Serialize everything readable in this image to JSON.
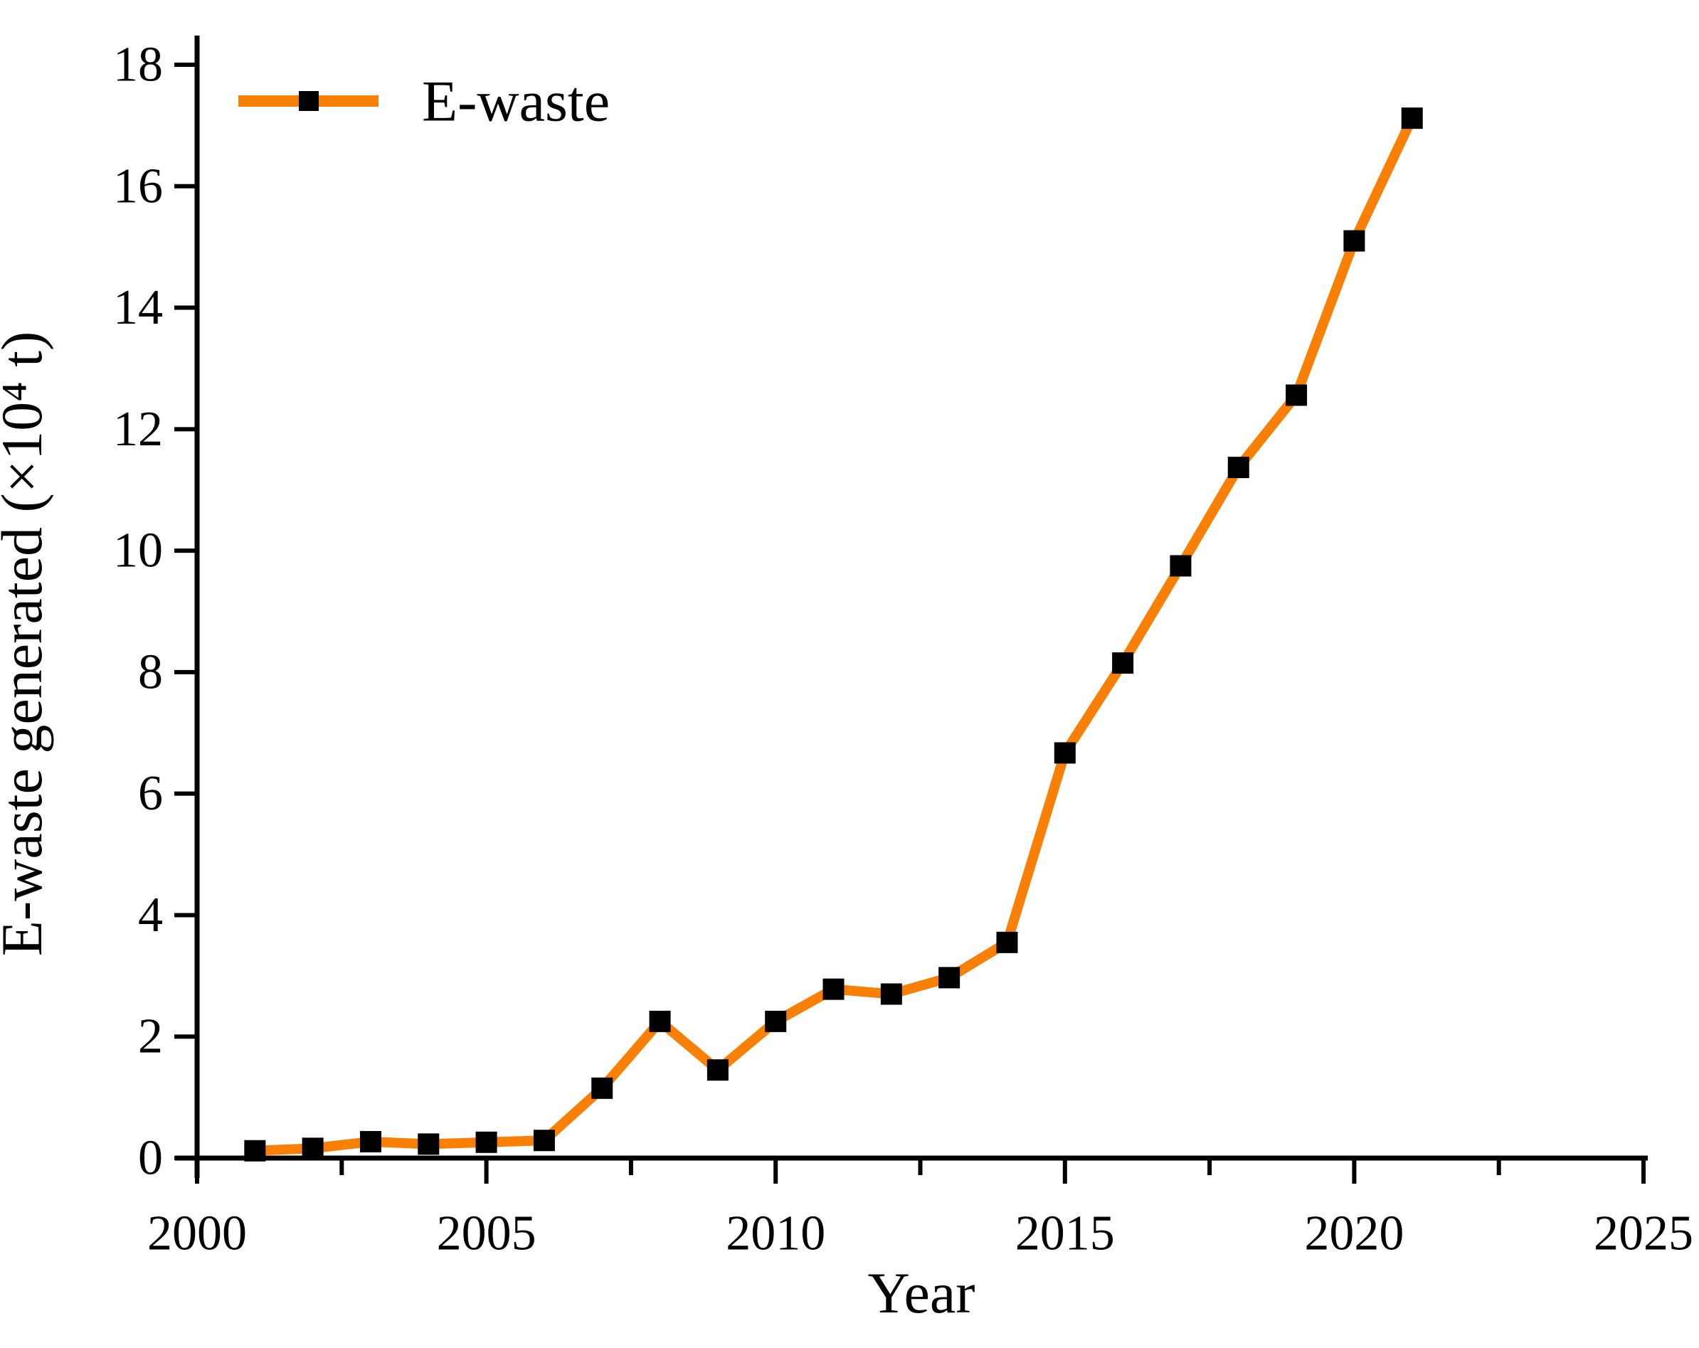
{
  "figure": {
    "background": "#ffffff"
  },
  "colors": {
    "line": "#FA8005",
    "marker": "#000000",
    "axis": "#000000",
    "text": "#000000"
  },
  "legend": {
    "entries": [
      {
        "label": "E-waste",
        "color": "#FA8005",
        "marker": "black-square"
      }
    ],
    "position": "top-left"
  },
  "chart_data": {
    "type": "line",
    "title": "",
    "xlabel": "Year",
    "ylabel": "E-waste generated (×10⁴ t)",
    "x": [
      2001,
      2002,
      2003,
      2004,
      2005,
      2006,
      2007,
      2008,
      2009,
      2010,
      2011,
      2012,
      2013,
      2014,
      2015,
      2016,
      2017,
      2018,
      2019,
      2020,
      2021
    ],
    "series": [
      {
        "name": "E-waste",
        "values": [
          0.12,
          0.16,
          0.27,
          0.23,
          0.26,
          0.29,
          1.15,
          2.25,
          1.45,
          2.25,
          2.78,
          2.7,
          2.97,
          3.55,
          6.67,
          8.15,
          9.75,
          11.37,
          12.56,
          15.1,
          17.12
        ]
      }
    ],
    "xlim": [
      2000,
      2025
    ],
    "ylim": [
      0,
      18
    ],
    "xticks": [
      2000,
      2005,
      2010,
      2015,
      2020,
      2025
    ],
    "xtick_labels": [
      "2000",
      "2005",
      "2010",
      "2015",
      "2020",
      "2025"
    ],
    "minor_xticks": [
      2002.5,
      2007.5,
      2012.5,
      2017.5,
      2022.5
    ],
    "yticks": [
      0,
      2,
      4,
      6,
      8,
      10,
      12,
      14,
      16,
      18
    ],
    "ytick_labels": [
      "0",
      "2",
      "4",
      "6",
      "8",
      "10",
      "12",
      "14",
      "16",
      "18"
    ],
    "grid": false,
    "legend_position": "top-left",
    "marker_shape": "square"
  }
}
